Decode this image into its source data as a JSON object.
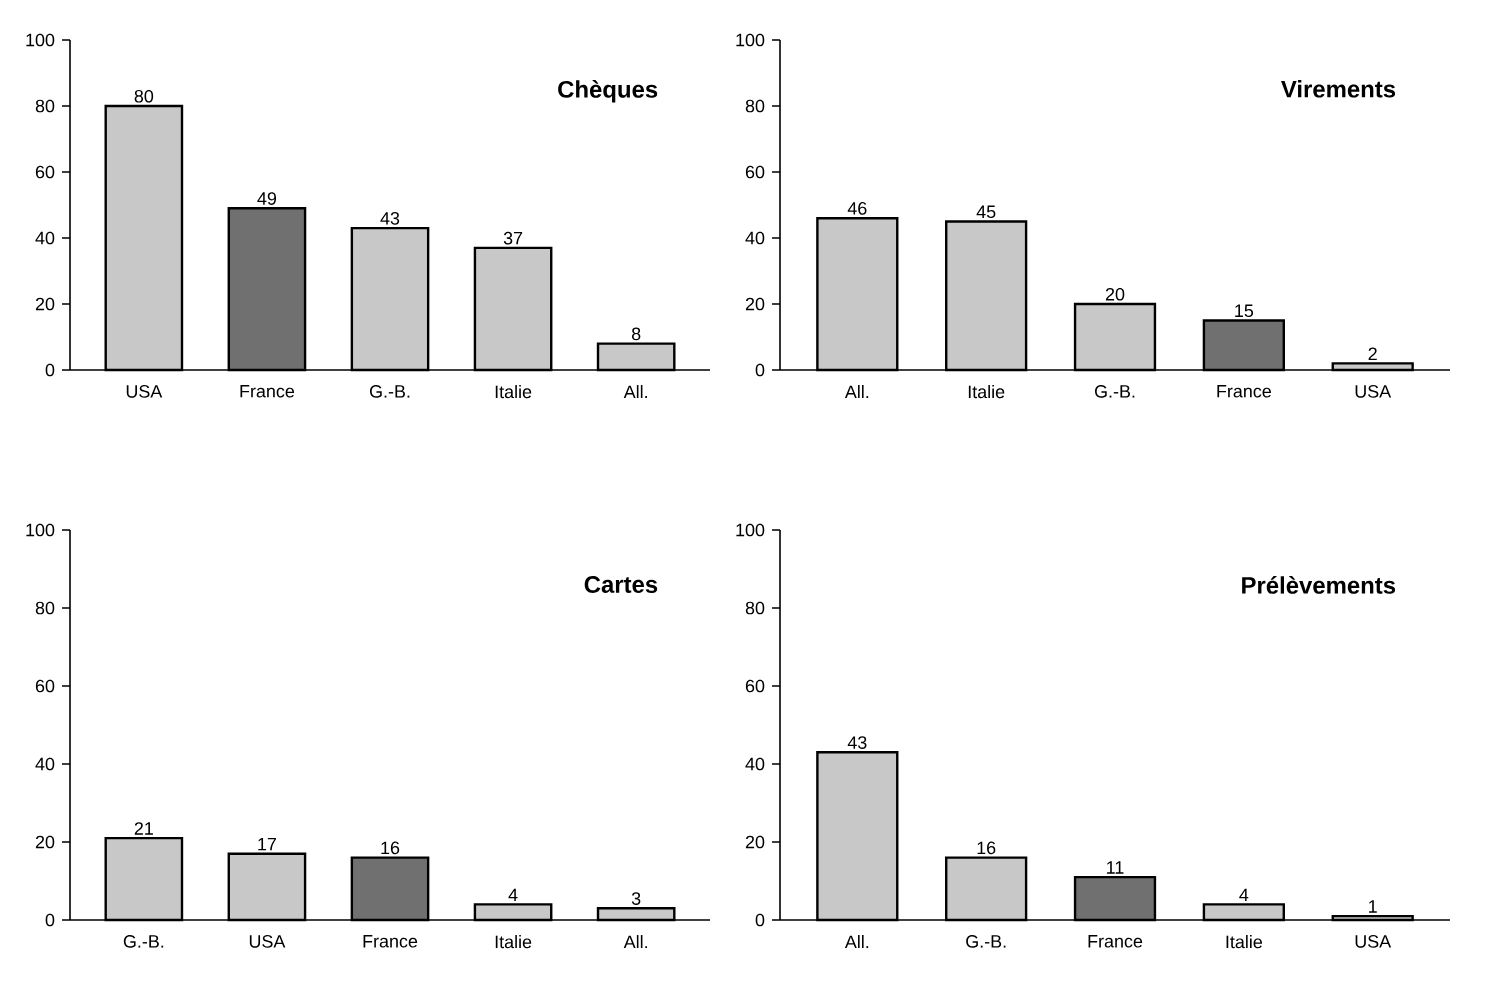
{
  "chart_data": [
    {
      "type": "bar",
      "title": "Chèques",
      "categories": [
        "USA",
        "France",
        "G.-B.",
        "Italie",
        "All."
      ],
      "values": [
        80,
        49,
        43,
        37,
        8
      ],
      "colors": [
        "#c8c8c8",
        "#707070",
        "#c8c8c8",
        "#c8c8c8",
        "#c8c8c8"
      ],
      "ylim": [
        0,
        100
      ],
      "yticks": [
        0,
        20,
        40,
        60,
        80,
        100
      ],
      "data_labels": true
    },
    {
      "type": "bar",
      "title": "Virements",
      "categories": [
        "All.",
        "Italie",
        "G.-B.",
        "France",
        "USA"
      ],
      "values": [
        46,
        45,
        20,
        15,
        2
      ],
      "colors": [
        "#c8c8c8",
        "#c8c8c8",
        "#c8c8c8",
        "#707070",
        "#c8c8c8"
      ],
      "ylim": [
        0,
        100
      ],
      "yticks": [
        0,
        20,
        40,
        60,
        80,
        100
      ],
      "data_labels": true
    },
    {
      "type": "bar",
      "title": "Cartes",
      "categories": [
        "G.-B.",
        "USA",
        "France",
        "Italie",
        "All."
      ],
      "values": [
        21,
        17,
        16,
        4,
        3
      ],
      "colors": [
        "#c8c8c8",
        "#c8c8c8",
        "#707070",
        "#c8c8c8",
        "#c8c8c8"
      ],
      "ylim": [
        0,
        100
      ],
      "yticks": [
        0,
        20,
        40,
        60,
        80,
        100
      ],
      "data_labels": true
    },
    {
      "type": "bar",
      "title": "Prélèvements",
      "categories": [
        "All.",
        "G.-B.",
        "France",
        "Italie",
        "USA"
      ],
      "values": [
        43,
        16,
        11,
        4,
        1
      ],
      "colors": [
        "#c8c8c8",
        "#c8c8c8",
        "#707070",
        "#c8c8c8",
        "#c8c8c8"
      ],
      "ylim": [
        0,
        100
      ],
      "yticks": [
        0,
        20,
        40,
        60,
        80,
        100
      ],
      "data_labels": true
    }
  ]
}
